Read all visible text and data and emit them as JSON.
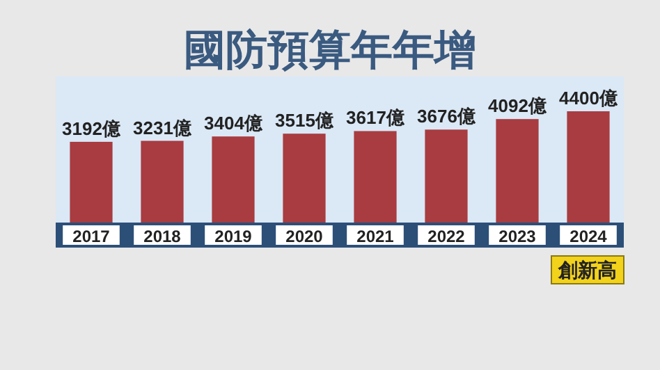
{
  "chart_data": {
    "type": "bar",
    "title": "國防預算年年增",
    "categories": [
      "2017",
      "2018",
      "2019",
      "2020",
      "2021",
      "2022",
      "2023",
      "2024"
    ],
    "values": [
      3192,
      3231,
      3404,
      3515,
      3617,
      3676,
      4092,
      4400
    ],
    "value_labels": [
      "3192億",
      "3231億",
      "3404億",
      "3515億",
      "3617億",
      "3676億",
      "4092億",
      "4400億"
    ],
    "color": "#a83c40",
    "annotations": [
      "創新高"
    ]
  }
}
